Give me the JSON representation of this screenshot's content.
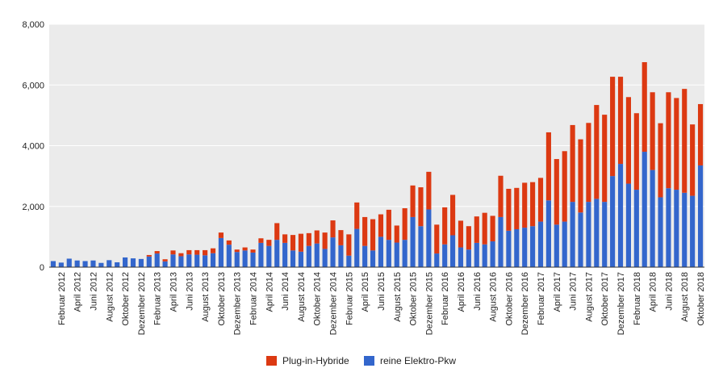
{
  "chart_data": {
    "type": "bar",
    "stacked": true,
    "ylim": [
      0,
      8000
    ],
    "yticks": [
      0,
      2000,
      4000,
      6000,
      8000
    ],
    "ytick_labels": [
      "0",
      "2,000",
      "4,000",
      "6,000",
      "8,000"
    ],
    "grid": true,
    "legend_position": "bottom",
    "colors": {
      "plot_background": "#ebebeb",
      "grid": "#ffffff"
    },
    "categories": [
      "Januar 2012",
      "Februar 2012",
      "März 2012",
      "April 2012",
      "Mai 2012",
      "Juni 2012",
      "Juli 2012",
      "August 2012",
      "September 2012",
      "Oktober 2012",
      "November 2012",
      "Dezember 2012",
      "Januar 2013",
      "Februar 2013",
      "März 2013",
      "April 2013",
      "Mai 2013",
      "Juni 2013",
      "Juli 2013",
      "August 2013",
      "September 2013",
      "Oktober 2013",
      "November 2013",
      "Dezember 2013",
      "Januar 2014",
      "Februar 2014",
      "März 2014",
      "April 2014",
      "Mai 2014",
      "Juni 2014",
      "Juli 2014",
      "August 2014",
      "September 2014",
      "Oktober 2014",
      "November 2014",
      "Dezember 2014",
      "Januar 2015",
      "Februar 2015",
      "März 2015",
      "April 2015",
      "Mai 2015",
      "Juni 2015",
      "Juli 2015",
      "August 2015",
      "September 2015",
      "Oktober 2015",
      "November 2015",
      "Dezember 2015",
      "Januar 2016",
      "Februar 2016",
      "März 2016",
      "April 2016",
      "Mai 2016",
      "Juni 2016",
      "Juli 2016",
      "August 2016",
      "September 2016",
      "Oktober 2016",
      "November 2016",
      "Dezember 2016",
      "Januar 2017",
      "Februar 2017",
      "März 2017",
      "April 2017",
      "Mai 2017",
      "Juni 2017",
      "Juli 2017",
      "August 2017",
      "September 2017",
      "Oktober 2017",
      "November 2017",
      "Dezember 2017",
      "Januar 2018",
      "Februar 2018",
      "März 2018",
      "April 2018",
      "Mai 2018",
      "Juni 2018",
      "Juli 2018",
      "August 2018",
      "September 2018",
      "Oktober 2018"
    ],
    "shown_labels": [
      "Februar 2012",
      "April 2012",
      "Juni 2012",
      "August 2012",
      "Oktober 2012",
      "Dezember 2012",
      "Februar 2013",
      "April 2013",
      "Juni 2013",
      "August 2013",
      "Oktober 2013",
      "Dezember 2013",
      "Februar 2014",
      "April 2014",
      "Juni 2014",
      "August 2014",
      "Oktober 2014",
      "Dezember 2014",
      "Februar 2015",
      "April 2015",
      "Juni 2015",
      "August 2015",
      "Oktober 2015",
      "Dezember 2015",
      "Februar 2016",
      "April 2016",
      "Juni 2016",
      "August 2016",
      "Oktober 2016",
      "Dezember 2016",
      "Februar 2017",
      "April 2017",
      "Juni 2017",
      "August 2017",
      "Oktober 2017",
      "Dezember 2017",
      "Februar 2018",
      "April 2018",
      "Juni 2018",
      "August 2018",
      "Oktober 2018"
    ],
    "series": [
      {
        "name": "reine Elektro-Pkw",
        "color": "#3366cc",
        "values": [
          200,
          150,
          280,
          220,
          200,
          220,
          140,
          230,
          160,
          320,
          290,
          270,
          350,
          450,
          190,
          420,
          360,
          420,
          410,
          390,
          460,
          960,
          740,
          500,
          550,
          480,
          800,
          700,
          900,
          800,
          550,
          510,
          700,
          780,
          600,
          980,
          720,
          380,
          1260,
          700,
          550,
          1000,
          900,
          810,
          900,
          1650,
          1350,
          1900,
          450,
          750,
          1050,
          650,
          580,
          800,
          750,
          850,
          1650,
          1200,
          1250,
          1300,
          1350,
          1500,
          2200,
          1400,
          1500,
          2150,
          1800,
          2150,
          2250,
          2150,
          3000,
          3400,
          2750,
          2550,
          3800,
          3200,
          2300,
          2600,
          2550,
          2450,
          2350,
          3350
        ]
      },
      {
        "name": "Plug-in-Hybride",
        "color": "#dc3912",
        "values": [
          0,
          0,
          0,
          0,
          0,
          0,
          0,
          0,
          0,
          0,
          0,
          0,
          50,
          80,
          70,
          130,
          100,
          140,
          150,
          170,
          160,
          180,
          140,
          80,
          100,
          100,
          150,
          200,
          550,
          280,
          510,
          590,
          420,
          430,
          540,
          560,
          500,
          700,
          870,
          950,
          1030,
          740,
          990,
          560,
          1040,
          1040,
          1280,
          1240,
          950,
          1220,
          1330,
          880,
          770,
          870,
          1040,
          840,
          1360,
          1380,
          1360,
          1480,
          1450,
          1440,
          2240,
          2160,
          2320,
          2530,
          2410,
          2600,
          3090,
          2870,
          3270,
          2870,
          2850,
          2520,
          2950,
          2560,
          2440,
          3160,
          3020,
          3420,
          2350,
          2020
        ]
      }
    ]
  }
}
